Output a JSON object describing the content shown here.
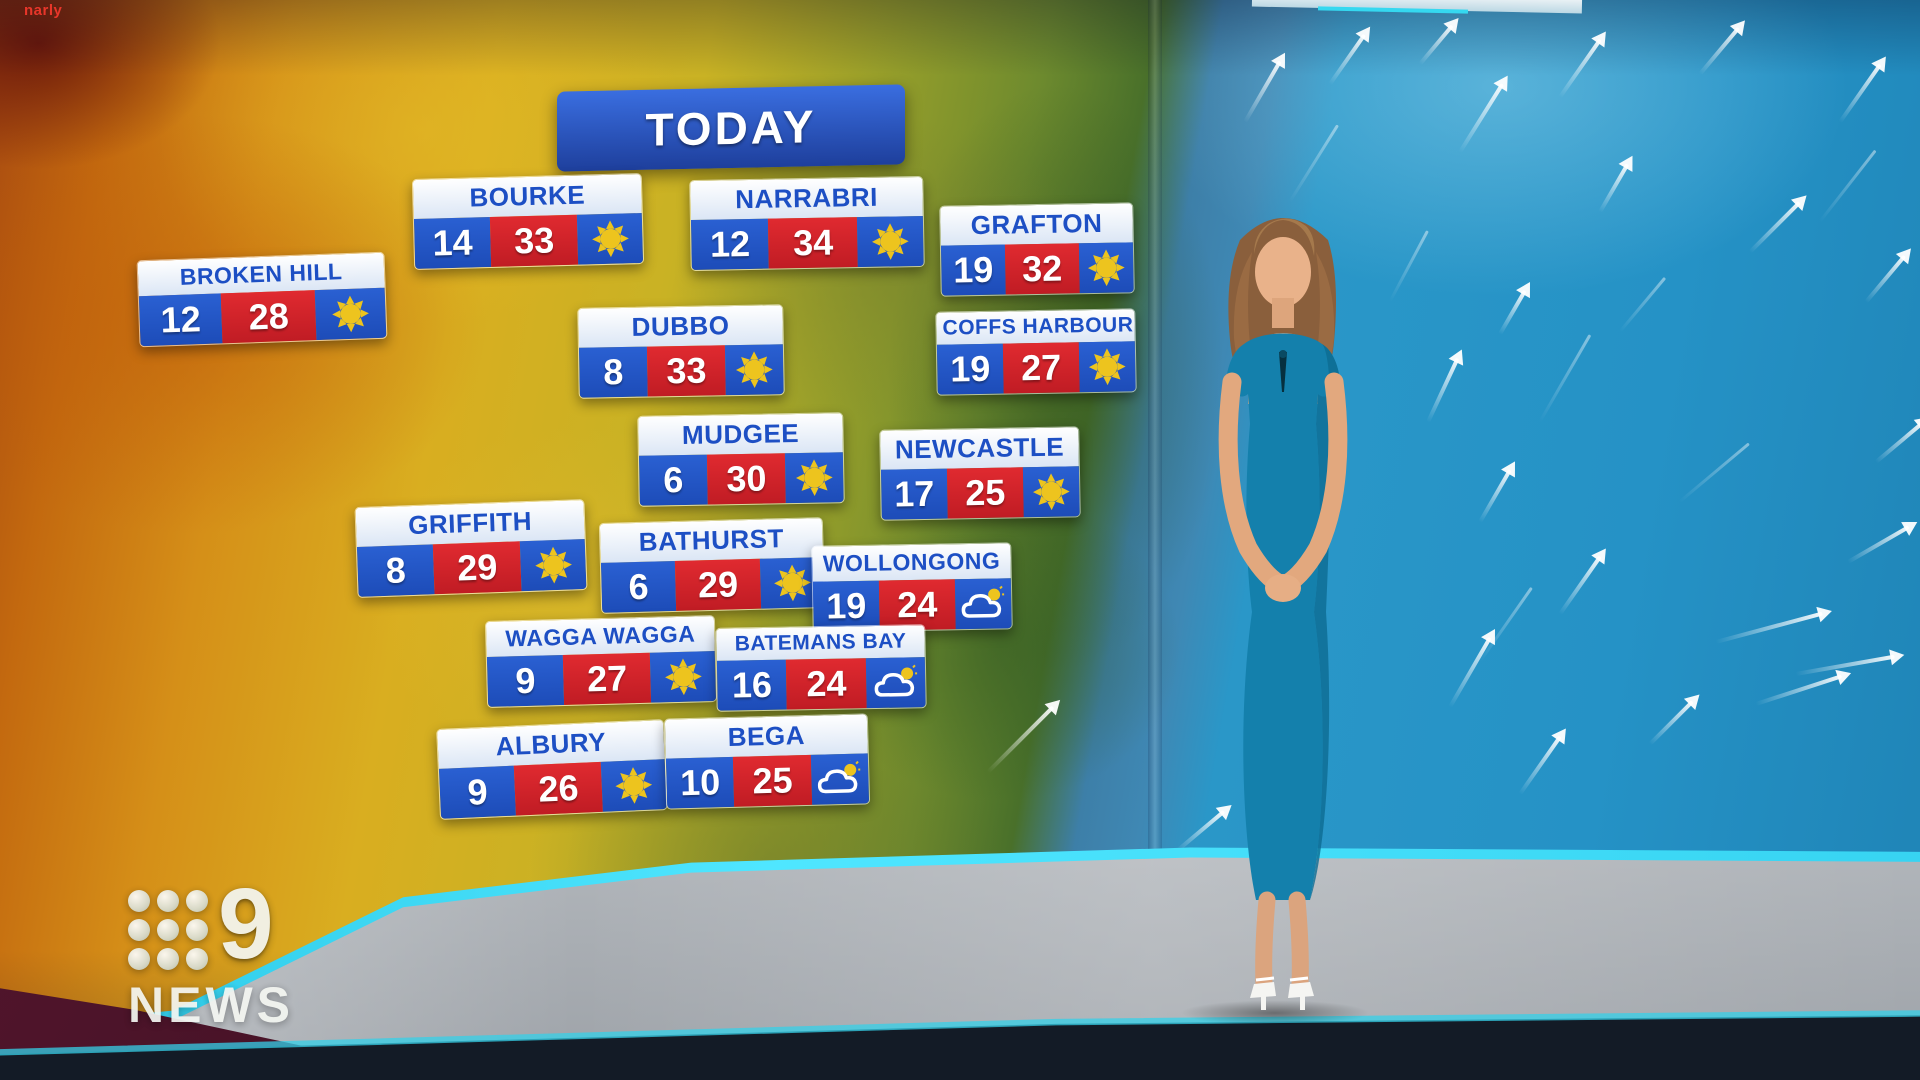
{
  "watermark": "narly",
  "banner": {
    "label": "TODAY"
  },
  "forecast": {
    "locations": [
      {
        "name": "BOURKE",
        "min": "14",
        "max": "33",
        "icon": "sunny"
      },
      {
        "name": "NARRABRI",
        "min": "12",
        "max": "34",
        "icon": "sunny"
      },
      {
        "name": "GRAFTON",
        "min": "19",
        "max": "32",
        "icon": "sunny"
      },
      {
        "name": "BROKEN HILL",
        "min": "12",
        "max": "28",
        "icon": "sunny"
      },
      {
        "name": "DUBBO",
        "min": "8",
        "max": "33",
        "icon": "sunny"
      },
      {
        "name": "COFFS HARBOUR",
        "min": "19",
        "max": "27",
        "icon": "sunny"
      },
      {
        "name": "MUDGEE",
        "min": "6",
        "max": "30",
        "icon": "sunny"
      },
      {
        "name": "NEWCASTLE",
        "min": "17",
        "max": "25",
        "icon": "sunny"
      },
      {
        "name": "GRIFFITH",
        "min": "8",
        "max": "29",
        "icon": "sunny"
      },
      {
        "name": "BATHURST",
        "min": "6",
        "max": "29",
        "icon": "sunny"
      },
      {
        "name": "WOLLONGONG",
        "min": "19",
        "max": "24",
        "icon": "partly-cloudy"
      },
      {
        "name": "WAGGA WAGGA",
        "min": "9",
        "max": "27",
        "icon": "sunny"
      },
      {
        "name": "BATEMANS BAY",
        "min": "16",
        "max": "24",
        "icon": "partly-cloudy"
      },
      {
        "name": "ALBURY",
        "min": "9",
        "max": "26",
        "icon": "sunny"
      },
      {
        "name": "BEGA",
        "min": "10",
        "max": "25",
        "icon": "partly-cloudy"
      }
    ]
  },
  "logo": {
    "network": "9",
    "name": "NEWS"
  },
  "colors": {
    "card_blue": "#2257c9",
    "card_red": "#d8242c",
    "label_blue": "#1d4fc4",
    "banner_blue": "#2a5ccc",
    "sun_yellow": "#edc41e",
    "cyan_strip": "#3fe0f8",
    "ocean_blue": "#2592c6"
  }
}
